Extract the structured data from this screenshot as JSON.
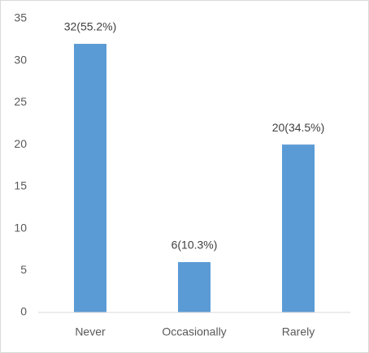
{
  "chart_data": {
    "type": "bar",
    "categories": [
      "Never",
      "Occasionally",
      "Rarely"
    ],
    "values": [
      32,
      6,
      20
    ],
    "value_labels": [
      "32(55.2%)",
      "6(10.3%)",
      "20(34.5%)"
    ],
    "color": "#5b9bd5",
    "ylim": [
      0,
      35
    ],
    "yticks": [
      0,
      5,
      10,
      15,
      20,
      25,
      30,
      35
    ],
    "grid": false
  }
}
